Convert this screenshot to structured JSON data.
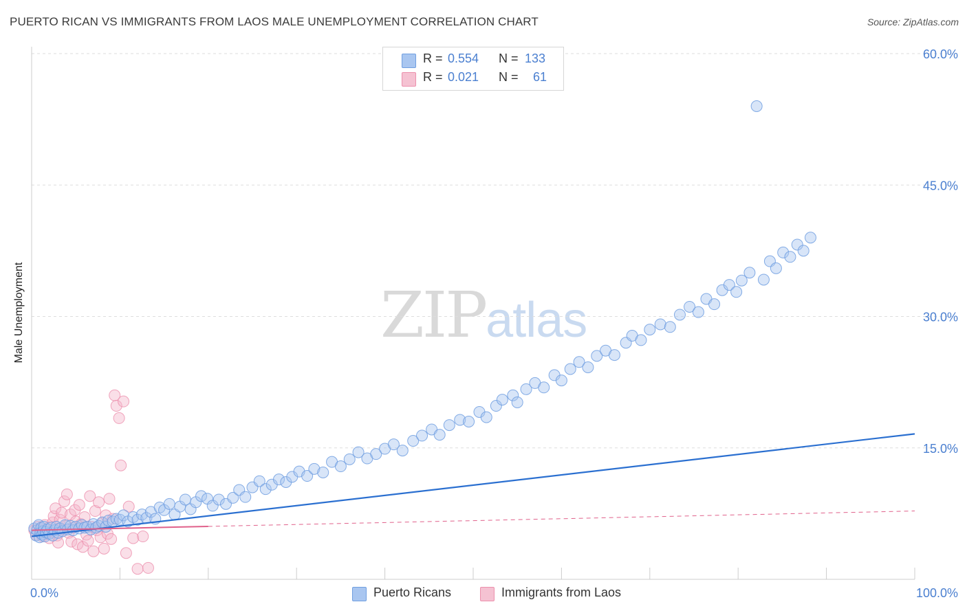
{
  "header": {
    "title": "PUERTO RICAN VS IMMIGRANTS FROM LAOS MALE UNEMPLOYMENT CORRELATION CHART",
    "source": "Source: ZipAtlas.com"
  },
  "watermark": {
    "zip": "ZIP",
    "atlas": "atlas"
  },
  "legend_top": [
    {
      "r_label": "R =",
      "r_value": "0.554",
      "n_label": "N =",
      "n_value": "133"
    },
    {
      "r_label": "R =",
      "r_value": "0.021",
      "n_label": "N =",
      "n_value": "61"
    }
  ],
  "legend_bottom": [
    {
      "label": "Puerto Ricans"
    },
    {
      "label": "Immigrants from Laos"
    }
  ],
  "colors": {
    "blue_fill": "#a9c6f0",
    "blue_stroke": "#6f9ee0",
    "blue_line": "#2a6fd0",
    "pink_fill": "#f5b8cb",
    "pink_stroke": "#ec8fac",
    "pink_line": "#e0608a",
    "axis_label": "#4a7fd0",
    "grid": "#dddddd"
  },
  "chart_data": {
    "type": "scatter",
    "title": "PUERTO RICAN VS IMMIGRANTS FROM LAOS MALE UNEMPLOYMENT CORRELATION CHART",
    "xlabel": "",
    "ylabel": "Male Unemployment",
    "xlim": [
      0,
      100
    ],
    "ylim": [
      0,
      60
    ],
    "x_tick_labels": [
      "0.0%",
      "100.0%"
    ],
    "y_ticks": [
      15,
      30,
      45,
      60
    ],
    "y_tick_labels": [
      "15.0%",
      "30.0%",
      "45.0%",
      "60.0%"
    ],
    "grid": true,
    "legend_position": "top-center",
    "series": [
      {
        "name": "Puerto Ricans",
        "r": 0.554,
        "n": 133,
        "trend": {
          "x": [
            0,
            100
          ],
          "y": [
            4.9,
            16.6
          ]
        },
        "points": [
          [
            0.3,
            5.8
          ],
          [
            0.5,
            5.0
          ],
          [
            0.6,
            5.6
          ],
          [
            0.8,
            6.2
          ],
          [
            0.9,
            4.8
          ],
          [
            1.0,
            5.3
          ],
          [
            1.1,
            5.9
          ],
          [
            1.2,
            5.1
          ],
          [
            1.3,
            5.5
          ],
          [
            1.4,
            6.0
          ],
          [
            1.5,
            4.9
          ],
          [
            1.6,
            5.4
          ],
          [
            1.8,
            5.7
          ],
          [
            2.0,
            5.2
          ],
          [
            2.2,
            5.9
          ],
          [
            2.4,
            5.0
          ],
          [
            2.6,
            5.6
          ],
          [
            2.8,
            6.0
          ],
          [
            3.0,
            5.3
          ],
          [
            3.2,
            5.8
          ],
          [
            3.5,
            5.5
          ],
          [
            3.8,
            6.2
          ],
          [
            4.1,
            5.7
          ],
          [
            4.4,
            6.1
          ],
          [
            4.7,
            5.6
          ],
          [
            5.0,
            6.0
          ],
          [
            5.4,
            5.8
          ],
          [
            5.7,
            6.2
          ],
          [
            6.0,
            5.9
          ],
          [
            6.3,
            6.0
          ],
          [
            6.7,
            5.7
          ],
          [
            7.0,
            6.3
          ],
          [
            7.3,
            5.9
          ],
          [
            7.6,
            6.1
          ],
          [
            8.0,
            6.5
          ],
          [
            8.4,
            6.0
          ],
          [
            8.7,
            6.7
          ],
          [
            9.2,
            6.6
          ],
          [
            9.6,
            6.9
          ],
          [
            10.0,
            6.8
          ],
          [
            10.4,
            7.3
          ],
          [
            10.9,
            6.6
          ],
          [
            11.5,
            7.1
          ],
          [
            12.0,
            6.8
          ],
          [
            12.5,
            7.4
          ],
          [
            13.0,
            7.0
          ],
          [
            13.5,
            7.7
          ],
          [
            14.0,
            6.9
          ],
          [
            14.5,
            8.2
          ],
          [
            15.0,
            7.9
          ],
          [
            15.6,
            8.6
          ],
          [
            16.2,
            7.4
          ],
          [
            16.8,
            8.3
          ],
          [
            17.4,
            9.1
          ],
          [
            18.0,
            8.0
          ],
          [
            18.6,
            8.8
          ],
          [
            19.2,
            9.5
          ],
          [
            19.9,
            9.2
          ],
          [
            20.5,
            8.4
          ],
          [
            21.2,
            9.1
          ],
          [
            22.0,
            8.6
          ],
          [
            22.8,
            9.3
          ],
          [
            23.5,
            10.2
          ],
          [
            24.2,
            9.4
          ],
          [
            25.0,
            10.5
          ],
          [
            25.8,
            11.2
          ],
          [
            26.5,
            10.3
          ],
          [
            27.2,
            10.8
          ],
          [
            28.0,
            11.4
          ],
          [
            28.8,
            11.1
          ],
          [
            29.5,
            11.7
          ],
          [
            30.3,
            12.3
          ],
          [
            31.2,
            11.8
          ],
          [
            32.0,
            12.6
          ],
          [
            33.0,
            12.2
          ],
          [
            34.0,
            13.4
          ],
          [
            35.0,
            12.9
          ],
          [
            36.0,
            13.7
          ],
          [
            37.0,
            14.5
          ],
          [
            38.0,
            13.8
          ],
          [
            39.0,
            14.3
          ],
          [
            40.0,
            14.9
          ],
          [
            41.0,
            15.4
          ],
          [
            42.0,
            14.7
          ],
          [
            43.2,
            15.8
          ],
          [
            44.2,
            16.4
          ],
          [
            45.3,
            17.1
          ],
          [
            46.2,
            16.5
          ],
          [
            47.3,
            17.6
          ],
          [
            48.5,
            18.2
          ],
          [
            49.5,
            18.0
          ],
          [
            50.7,
            19.1
          ],
          [
            51.5,
            18.5
          ],
          [
            52.6,
            19.8
          ],
          [
            53.3,
            20.5
          ],
          [
            54.5,
            21.0
          ],
          [
            55.0,
            20.2
          ],
          [
            56.0,
            21.7
          ],
          [
            57.0,
            22.4
          ],
          [
            58.0,
            21.9
          ],
          [
            59.2,
            23.3
          ],
          [
            60.0,
            22.7
          ],
          [
            61.0,
            24.0
          ],
          [
            62.0,
            24.8
          ],
          [
            63.0,
            24.2
          ],
          [
            64.0,
            25.5
          ],
          [
            65.0,
            26.1
          ],
          [
            66.0,
            25.6
          ],
          [
            67.3,
            27.0
          ],
          [
            68.0,
            27.8
          ],
          [
            69.0,
            27.3
          ],
          [
            70.0,
            28.5
          ],
          [
            71.2,
            29.1
          ],
          [
            72.3,
            28.8
          ],
          [
            73.4,
            30.2
          ],
          [
            74.5,
            31.1
          ],
          [
            75.5,
            30.5
          ],
          [
            76.4,
            32.0
          ],
          [
            77.3,
            31.4
          ],
          [
            78.2,
            33.0
          ],
          [
            79.0,
            33.6
          ],
          [
            79.8,
            32.8
          ],
          [
            80.4,
            34.1
          ],
          [
            81.3,
            35.0
          ],
          [
            82.1,
            54.0
          ],
          [
            82.9,
            34.2
          ],
          [
            83.6,
            36.3
          ],
          [
            84.3,
            35.5
          ],
          [
            85.1,
            37.3
          ],
          [
            85.9,
            36.8
          ],
          [
            86.7,
            38.2
          ],
          [
            87.4,
            37.5
          ],
          [
            88.2,
            39.0
          ]
        ]
      },
      {
        "name": "Immigrants from Laos",
        "r": 0.021,
        "n": 61,
        "trend": {
          "x": [
            0,
            100
          ],
          "y": [
            5.6,
            7.8
          ]
        },
        "points": [
          [
            0.3,
            5.6
          ],
          [
            0.5,
            5.1
          ],
          [
            0.7,
            6.0
          ],
          [
            0.9,
            5.3
          ],
          [
            1.0,
            5.8
          ],
          [
            1.2,
            4.9
          ],
          [
            1.4,
            5.5
          ],
          [
            1.5,
            6.2
          ],
          [
            1.7,
            5.2
          ],
          [
            1.9,
            5.9
          ],
          [
            2.0,
            4.7
          ],
          [
            2.2,
            5.4
          ],
          [
            2.4,
            6.5
          ],
          [
            2.5,
            7.2
          ],
          [
            2.7,
            8.1
          ],
          [
            2.9,
            5.0
          ],
          [
            3.0,
            4.2
          ],
          [
            3.2,
            6.8
          ],
          [
            3.4,
            7.6
          ],
          [
            3.5,
            5.7
          ],
          [
            3.7,
            8.9
          ],
          [
            3.9,
            6.1
          ],
          [
            4.0,
            9.7
          ],
          [
            4.2,
            5.3
          ],
          [
            4.4,
            7.4
          ],
          [
            4.5,
            4.3
          ],
          [
            4.7,
            5.9
          ],
          [
            4.9,
            7.9
          ],
          [
            5.0,
            6.6
          ],
          [
            5.2,
            4.0
          ],
          [
            5.4,
            8.5
          ],
          [
            5.6,
            6.3
          ],
          [
            5.8,
            3.7
          ],
          [
            6.0,
            7.1
          ],
          [
            6.2,
            5.1
          ],
          [
            6.4,
            4.4
          ],
          [
            6.6,
            9.5
          ],
          [
            6.8,
            6.0
          ],
          [
            7.0,
            3.2
          ],
          [
            7.2,
            7.8
          ],
          [
            7.4,
            5.6
          ],
          [
            7.6,
            8.8
          ],
          [
            7.8,
            4.8
          ],
          [
            8.0,
            6.4
          ],
          [
            8.2,
            3.5
          ],
          [
            8.4,
            7.3
          ],
          [
            8.6,
            5.2
          ],
          [
            8.8,
            9.2
          ],
          [
            9.0,
            4.6
          ],
          [
            9.2,
            6.9
          ],
          [
            9.4,
            21.0
          ],
          [
            9.6,
            19.8
          ],
          [
            9.9,
            18.4
          ],
          [
            10.1,
            13.0
          ],
          [
            10.4,
            20.3
          ],
          [
            10.7,
            3.0
          ],
          [
            11.0,
            8.3
          ],
          [
            11.5,
            4.7
          ],
          [
            12.0,
            1.2
          ],
          [
            12.6,
            4.9
          ],
          [
            13.2,
            1.3
          ]
        ]
      }
    ]
  }
}
